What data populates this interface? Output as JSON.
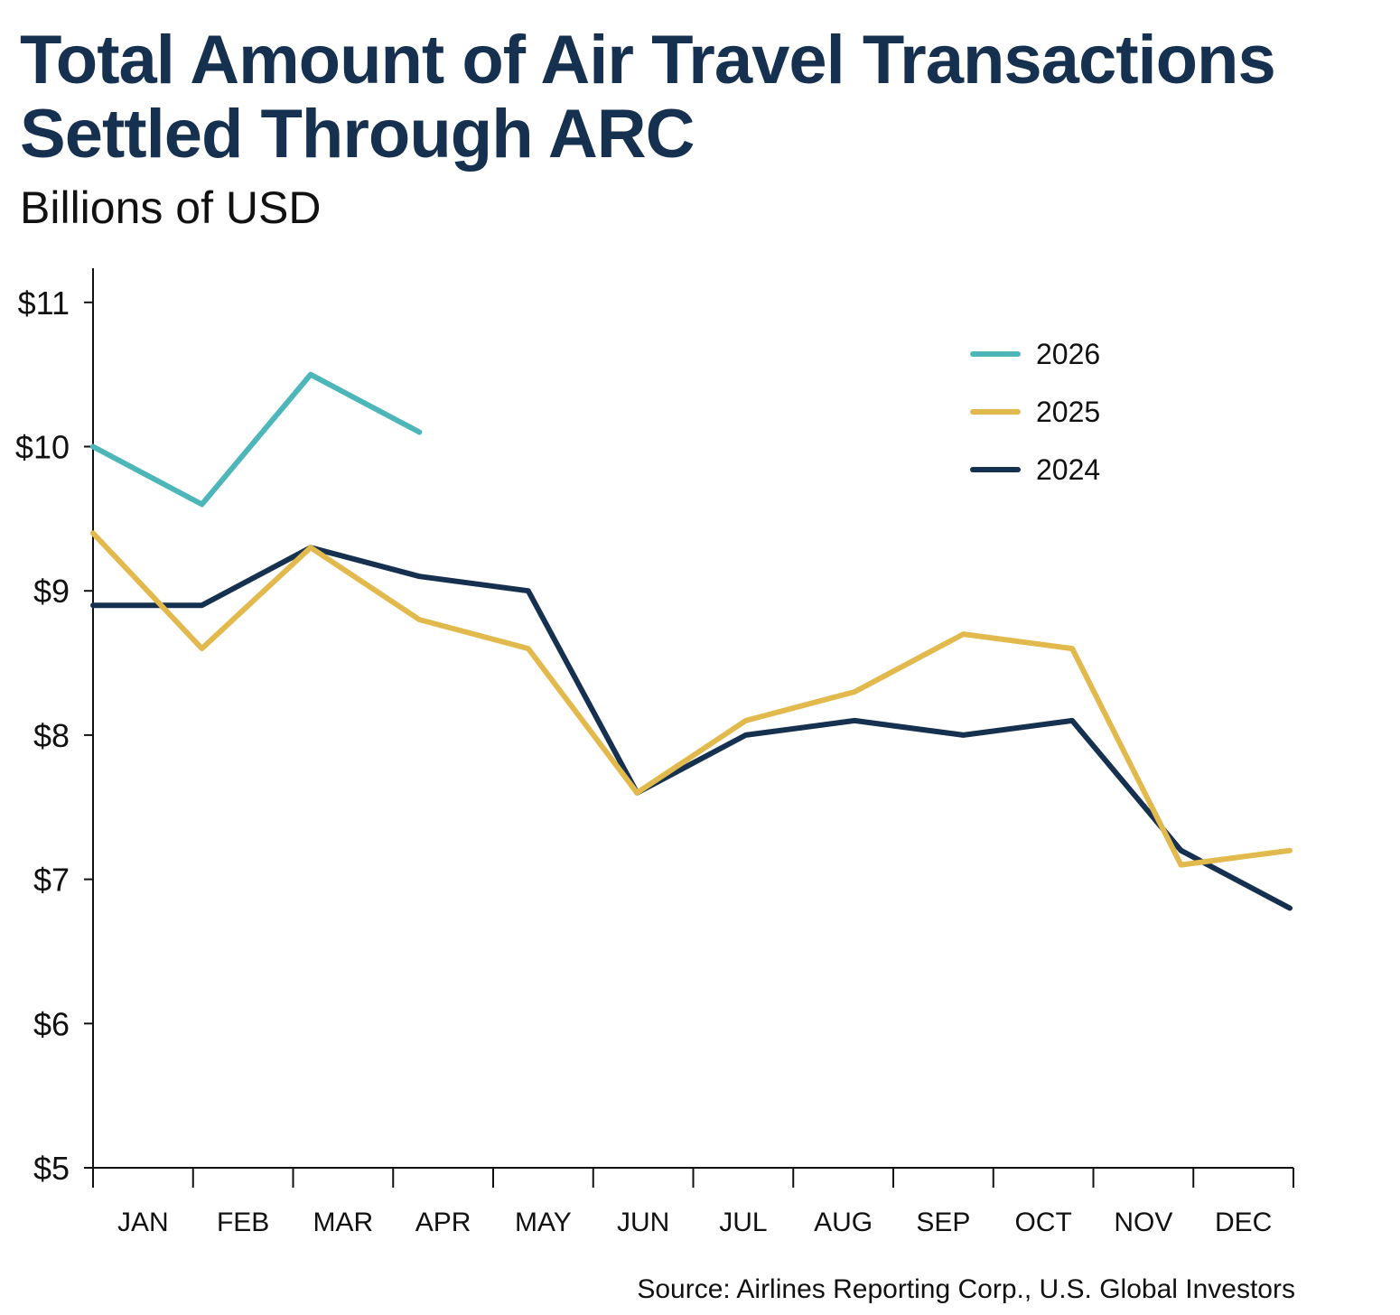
{
  "header": {
    "title": "Total Amount of Air Travel Transactions Settled Through ARC",
    "subtitle": "Billions of USD"
  },
  "footer": {
    "source": "Source: Airlines Reporting Corp., U.S. Global Investors"
  },
  "colors": {
    "s2026": "#4db6b8",
    "s2025": "#e2b94c",
    "s2024": "#16304f",
    "axis": "#111111",
    "title": "#16304f"
  },
  "chart_data": {
    "type": "line",
    "title": "Total Amount of Air Travel Transactions Settled Through ARC",
    "subtitle": "Billions of USD",
    "xlabel": "",
    "ylabel": "",
    "categories": [
      "JAN",
      "FEB",
      "MAR",
      "APR",
      "MAY",
      "JUN",
      "JUL",
      "AUG",
      "SEP",
      "OCT",
      "NOV",
      "DEC"
    ],
    "y_ticks": [
      "$5",
      "$6",
      "$7",
      "$8",
      "$9",
      "$10",
      "$11"
    ],
    "ylim": [
      5,
      11.25
    ],
    "grid": false,
    "legend_position": "top-right",
    "series": [
      {
        "name": "2026",
        "color": "#4db6b8",
        "values": [
          10.0,
          9.6,
          10.5,
          10.1,
          null,
          null,
          null,
          null,
          null,
          null,
          null,
          null
        ]
      },
      {
        "name": "2025",
        "color": "#e2b94c",
        "values": [
          9.4,
          8.6,
          9.3,
          8.8,
          8.6,
          7.6,
          8.1,
          8.3,
          8.7,
          8.6,
          7.1,
          7.2
        ]
      },
      {
        "name": "2024",
        "color": "#16304f",
        "values": [
          8.9,
          8.9,
          9.3,
          9.1,
          9.0,
          7.6,
          8.0,
          8.1,
          8.0,
          8.1,
          7.2,
          6.8
        ]
      }
    ]
  }
}
